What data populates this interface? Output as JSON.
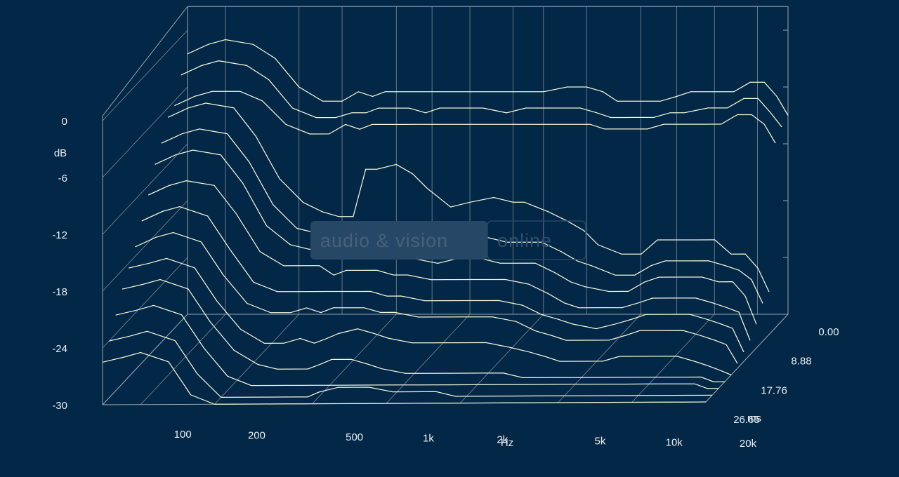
{
  "chart_data": {
    "type": "line",
    "subtype": "cumulative-spectral-decay (waterfall)",
    "x_axis": {
      "unit_label": "Hz",
      "scale": "log",
      "range": [
        70,
        20000
      ],
      "ticks": [
        {
          "value": 100,
          "label": "100"
        },
        {
          "value": 200,
          "label": "200"
        },
        {
          "value": 500,
          "label": "500"
        },
        {
          "value": 1000,
          "label": "1k"
        },
        {
          "value": 2000,
          "label": "2k"
        },
        {
          "value": 5000,
          "label": "5k"
        },
        {
          "value": 10000,
          "label": "10k"
        },
        {
          "value": 20000,
          "label": "20k"
        }
      ]
    },
    "y_axis": {
      "unit_label": "dB",
      "range": [
        -30,
        0
      ],
      "ticks": [
        {
          "value": 0,
          "label": "0"
        },
        {
          "value": -6,
          "label": "-6"
        },
        {
          "value": -12,
          "label": "-12"
        },
        {
          "value": -18,
          "label": "-18"
        },
        {
          "value": -24,
          "label": "-24"
        },
        {
          "value": -30,
          "label": "-30"
        }
      ]
    },
    "z_axis": {
      "unit_label": "ms",
      "range": [
        0,
        26.65
      ],
      "ticks": [
        {
          "value": 0,
          "label": "0.00"
        },
        {
          "value": 8.88,
          "label": "8.88"
        },
        {
          "value": 17.76,
          "label": "17.76"
        },
        {
          "value": 26.65,
          "label": "26.65"
        }
      ]
    },
    "x": [
      70,
      85,
      100,
      130,
      160,
      200,
      250,
      300,
      350,
      400,
      450,
      500,
      600,
      700,
      800,
      1000,
      1200,
      1500,
      1800,
      2000,
      2500,
      3000,
      3500,
      4000,
      5000,
      6000,
      7000,
      8000,
      10000,
      12000,
      14000,
      16000,
      18000,
      20000
    ],
    "series": [
      {
        "values": [
          -2.5,
          -1.5,
          -1,
          -1.5,
          -3,
          -6,
          -7.5,
          -7.5,
          -6.5,
          -7,
          -6.5,
          -6.5,
          -6.5,
          -6.5,
          -6.5,
          -6.5,
          -6.5,
          -6.5,
          -6.5,
          -6.5,
          -6,
          -6,
          -6.5,
          -7.5,
          -7.5,
          -7.5,
          -7,
          -6.5,
          -6.5,
          -6.5,
          -5.5,
          -5.5,
          -7,
          -9
        ]
      },
      {
        "values": [
          -4,
          -3,
          -2.5,
          -3,
          -4.5,
          -7.5,
          -8.5,
          -8.5,
          -8,
          -8,
          -7.5,
          -7.5,
          -7.5,
          -8,
          -7.5,
          -7.5,
          -7.5,
          -8,
          -7.5,
          -7.5,
          -7.5,
          -7.5,
          -8,
          -8.5,
          -8.5,
          -8.5,
          -8,
          -8,
          -7.5,
          -7.5,
          -6.5,
          -6.5,
          -8,
          -9.5
        ]
      },
      {
        "values": [
          -6.5,
          -5.5,
          -5,
          -5,
          -6,
          -8.5,
          -9.5,
          -9.5,
          -8.5,
          -9,
          -8.5,
          -8.5,
          -8.5,
          -8.5,
          -8.5,
          -8.5,
          -8.5,
          -8.5,
          -8.5,
          -8.5,
          -8.5,
          -8.5,
          -8.5,
          -9,
          -9,
          -9,
          -8.5,
          -8.5,
          -8.5,
          -8.5,
          -7.5,
          -7.5,
          -8.5,
          -10.5
        ]
      },
      {
        "values": [
          -7,
          -6,
          -5.5,
          -6,
          -9,
          -13.5,
          -16,
          -17,
          -17.5,
          -17.5,
          -12.5,
          -12.5,
          -12,
          -13,
          -14.5,
          -16.5,
          -16,
          -15.5,
          -16,
          -16,
          -17,
          -18,
          -19,
          -20.5,
          -21.5,
          -21.5,
          -20,
          -20,
          -20,
          -20,
          -21.5,
          -21.5,
          -23,
          -25.5
        ]
      },
      {
        "values": [
          -9,
          -8,
          -7.5,
          -8,
          -11,
          -15.5,
          -18,
          -18.5,
          -18.5,
          -19,
          -18.5,
          -18,
          -17.5,
          -18,
          -18.5,
          -19.5,
          -19,
          -19,
          -19.5,
          -19.5,
          -19.5,
          -20.5,
          -21.5,
          -22,
          -23,
          -23,
          -22,
          -21.5,
          -21.5,
          -21.5,
          -22,
          -22.5,
          -23.5,
          -26
        ]
      },
      {
        "values": [
          -10.5,
          -9.5,
          -9,
          -9.5,
          -12.5,
          -17,
          -19,
          -19.5,
          -19,
          -19,
          -19.5,
          -19.5,
          -19.5,
          -20,
          -20.5,
          -21,
          -20.5,
          -20.5,
          -21,
          -21,
          -21,
          -22,
          -23,
          -23.5,
          -24,
          -24,
          -23,
          -22.5,
          -22.5,
          -22.5,
          -23,
          -23,
          -24.5,
          -27.5
        ]
      },
      {
        "values": [
          -13,
          -12,
          -11.5,
          -12,
          -15,
          -19,
          -20.5,
          -20.5,
          -20.5,
          -21.5,
          -21,
          -21,
          -21,
          -21.5,
          -21.5,
          -22,
          -22,
          -22,
          -22,
          -22,
          -22.5,
          -23.5,
          -24.5,
          -25,
          -25,
          -25,
          -24.5,
          -24,
          -24,
          -24,
          -24.5,
          -25,
          -25.5,
          -28.5
        ]
      },
      {
        "values": [
          -15,
          -14,
          -13.5,
          -14.5,
          -18,
          -21.5,
          -22.5,
          -22.5,
          -22.5,
          -22.5,
          -22.5,
          -22.5,
          -22.5,
          -23,
          -23,
          -23.5,
          -23.5,
          -23.5,
          -23.5,
          -23.5,
          -24,
          -25,
          -25.5,
          -26,
          -26.5,
          -26,
          -25.5,
          -25,
          -25,
          -25,
          -25.5,
          -26,
          -26.5,
          -29
        ]
      },
      {
        "values": [
          -17,
          -16,
          -15.5,
          -16.5,
          -20,
          -23,
          -24,
          -24,
          -23.5,
          -24,
          -23.5,
          -23.5,
          -23.5,
          -24,
          -24,
          -24.5,
          -24.5,
          -24.5,
          -24.5,
          -24.5,
          -25,
          -26,
          -26.5,
          -27,
          -27,
          -27,
          -26.5,
          -26,
          -26,
          -26,
          -26.5,
          -27,
          -27.5,
          -29.5
        ]
      },
      {
        "values": [
          -18.5,
          -18,
          -17.5,
          -18.5,
          -22,
          -25,
          -26.5,
          -26.5,
          -26,
          -26.5,
          -26,
          -25.5,
          -25,
          -25.5,
          -26,
          -26.5,
          -26.5,
          -26.5,
          -26.5,
          -26.5,
          -27,
          -27.5,
          -28,
          -28.5,
          -28.5,
          -28.5,
          -28,
          -28,
          -28,
          -28,
          -28.5,
          -29,
          -29.5,
          -30
        ]
      },
      {
        "values": [
          -20,
          -19.5,
          -19,
          -20,
          -23.5,
          -26.5,
          -28,
          -28.5,
          -28.5,
          -28.5,
          -28,
          -27.5,
          -27.5,
          -28,
          -28.5,
          -29,
          -29,
          -29,
          -29,
          -29,
          -29,
          -29.5,
          -29.5,
          -29.5,
          -29.5,
          -29.5,
          -29.5,
          -29.5,
          -29.5,
          -29.5,
          -29.5,
          -29.5,
          -30,
          -30
        ]
      },
      {
        "values": [
          -22,
          -21.5,
          -21,
          -22,
          -25.5,
          -28.5,
          -29.5,
          -29.5,
          -29.5,
          -29.5,
          -29.5,
          -29.5,
          -29.5,
          -29.5,
          -29.5,
          -29.5,
          -29.5,
          -29.5,
          -29.5,
          -29.5,
          -29.5,
          -29.5,
          -29.5,
          -29.5,
          -29.5,
          -29.5,
          -29.5,
          -29.5,
          -29.5,
          -29.5,
          -29.5,
          -29.5,
          -30,
          -30
        ]
      },
      {
        "values": [
          -24,
          -23.5,
          -23,
          -24,
          -27.5,
          -30,
          -30,
          -30,
          -30,
          -30,
          -30,
          -29.5,
          -29,
          -29,
          -29,
          -29.5,
          -29.5,
          -29.5,
          -30,
          -30,
          -30,
          -30,
          -30,
          -30,
          -30,
          -30,
          -30,
          -30,
          -30,
          -30,
          -30,
          -30,
          -30,
          -30
        ]
      },
      {
        "values": [
          -25.5,
          -25,
          -24.5,
          -25.5,
          -29,
          -30,
          -30,
          -30,
          -30,
          -30,
          -30,
          -30,
          -30,
          -30,
          -30,
          -30,
          -30,
          -30,
          -30,
          -30,
          -30,
          -30,
          -30,
          -30,
          -30,
          -30,
          -30,
          -30,
          -30,
          -30,
          -30,
          -30,
          -30,
          -30
        ]
      }
    ],
    "grid": true,
    "watermark": {
      "left": "audio & vision",
      "right": "online"
    },
    "colors": {
      "background": "#032746",
      "curves": "#f2f6d8",
      "axes": "#9aa6b2",
      "labels": "#e9eef3"
    }
  }
}
